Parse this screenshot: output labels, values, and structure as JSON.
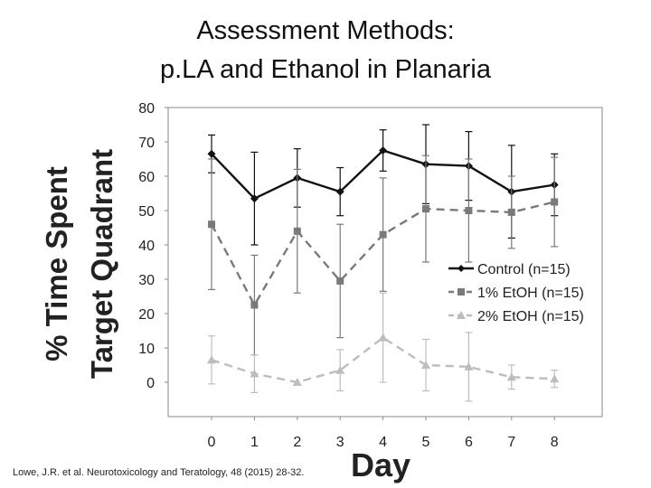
{
  "title_line1": "Assessment Methods:",
  "title_line2": "p.LA and Ethanol in Planaria",
  "citation": "Lowe, J.R. et al.  Neurotoxicology and Teratology, 48 (2015) 28-32.",
  "chart_data": {
    "type": "line",
    "title": "",
    "xlabel": "Day",
    "ylabel": [
      "% Time Spent",
      "Target Quadrant"
    ],
    "x": [
      0,
      1,
      2,
      3,
      4,
      5,
      6,
      7,
      8
    ],
    "xticks": [
      "0",
      "1",
      "2",
      "3",
      "4",
      "5",
      "6",
      "7",
      "8"
    ],
    "ylim": [
      0,
      80
    ],
    "yticks": [
      "0",
      "10",
      "20",
      "30",
      "40",
      "50",
      "60",
      "70",
      "80"
    ],
    "grid": false,
    "legend_position": "right",
    "series": [
      {
        "name": "Control (n=15)",
        "values": [
          66.5,
          53.5,
          59.5,
          55.5,
          67.5,
          63.5,
          63,
          55.5,
          57.5
        ],
        "error": [
          5.5,
          13.5,
          8.5,
          7,
          6,
          11.5,
          10,
          13.5,
          9
        ],
        "color": "#111111",
        "marker": "diamond",
        "dash": "solid"
      },
      {
        "name": "1% EtOH (n=15)",
        "values": [
          46,
          22.5,
          44,
          29.5,
          43,
          50.5,
          50,
          49.5,
          52.5
        ],
        "error": [
          19,
          14.5,
          18,
          16.5,
          16.5,
          15.5,
          15,
          10.5,
          13
        ],
        "color": "#7a7a7a",
        "marker": "square",
        "dash": "dashed"
      },
      {
        "name": "2% EtOH (n=15)",
        "values": [
          6.5,
          2.5,
          0,
          3.5,
          13,
          5,
          4.5,
          1.5,
          1
        ],
        "error": [
          7,
          5.5,
          0,
          6,
          13,
          7.5,
          10,
          3.5,
          2.5
        ],
        "color": "#bdbdbd",
        "marker": "triangle",
        "dash": "dashed"
      }
    ]
  }
}
